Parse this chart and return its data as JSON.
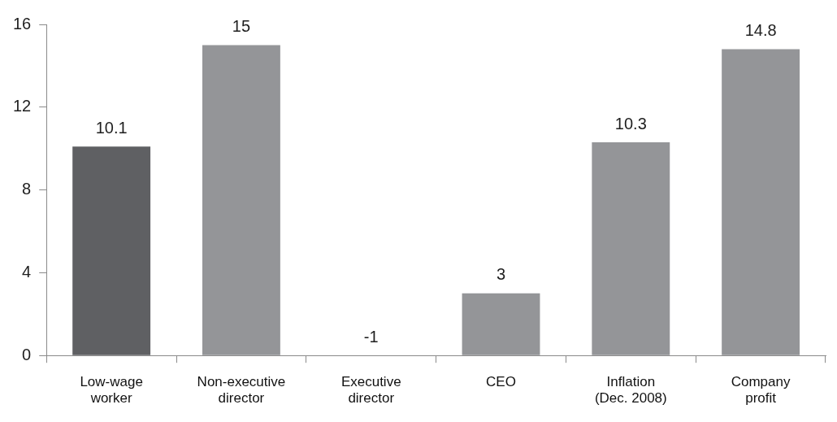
{
  "chart_data": {
    "type": "bar",
    "categories": [
      "Low-wage worker",
      "Non-executive director",
      "Executive director",
      "CEO",
      "Inflation (Dec. 2008)",
      "Company profit"
    ],
    "values": [
      10.1,
      15,
      null,
      3,
      10.3,
      14.8
    ],
    "value_labels": [
      "10.1",
      "15",
      "-1",
      "3",
      "10.3",
      "14.8"
    ],
    "colors": [
      "#5f6063",
      "#949598",
      "#949598",
      "#949598",
      "#949598",
      "#949598"
    ],
    "ylim": [
      0,
      16
    ],
    "yticks": [
      0,
      4,
      8,
      12,
      16
    ]
  }
}
